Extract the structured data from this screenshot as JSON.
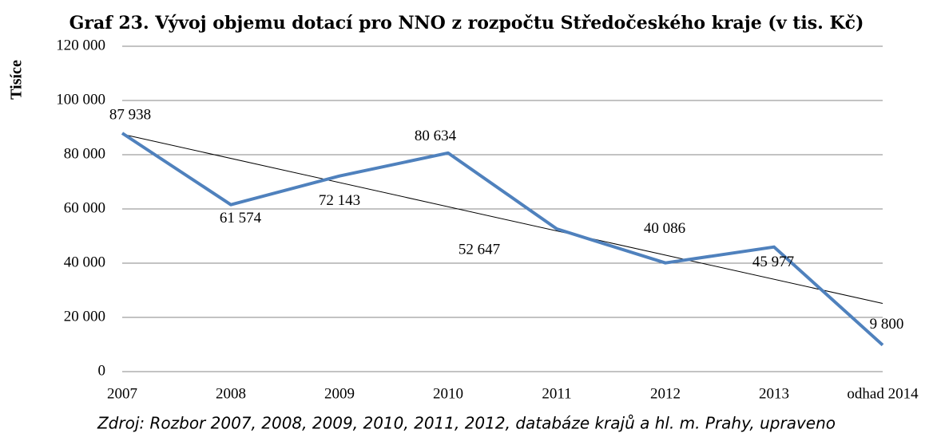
{
  "chart_data": {
    "type": "line",
    "title": "Graf 23. Vývoj objemu dotací pro NNO z rozpočtu Středočeského kraje (v tis. Kč)",
    "y_label": "Tisíce",
    "source": "Zdroj: Rozbor 2007, 2008, 2009, 2010, 2011, 2012, databáze krajů a hl. m. Prahy, upraveno",
    "categories": [
      "2007",
      "2008",
      "2009",
      "2010",
      "2011",
      "2012",
      "2013",
      "odhad 2014"
    ],
    "values": [
      87938,
      61574,
      72143,
      80634,
      52647,
      40086,
      45977,
      9800
    ],
    "value_labels": [
      "87 938",
      "61 574",
      "72 143",
      "80 634",
      "52 647",
      "40 086",
      "45 977",
      "9 800"
    ],
    "color": "#4f81bd",
    "trendline": "linear",
    "ylim": [
      0,
      120000
    ],
    "yticks": [
      0,
      {
        "value": 20000,
        "label": "20 000"
      },
      {
        "value": 40000,
        "label": "40 000"
      },
      {
        "value": 60000,
        "label": "60 000"
      },
      {
        "value": 80000,
        "label": "80 000"
      },
      {
        "value": 100000,
        "label": "100 000"
      },
      {
        "value": 120000,
        "label": "120 000"
      }
    ],
    "grid": true
  }
}
